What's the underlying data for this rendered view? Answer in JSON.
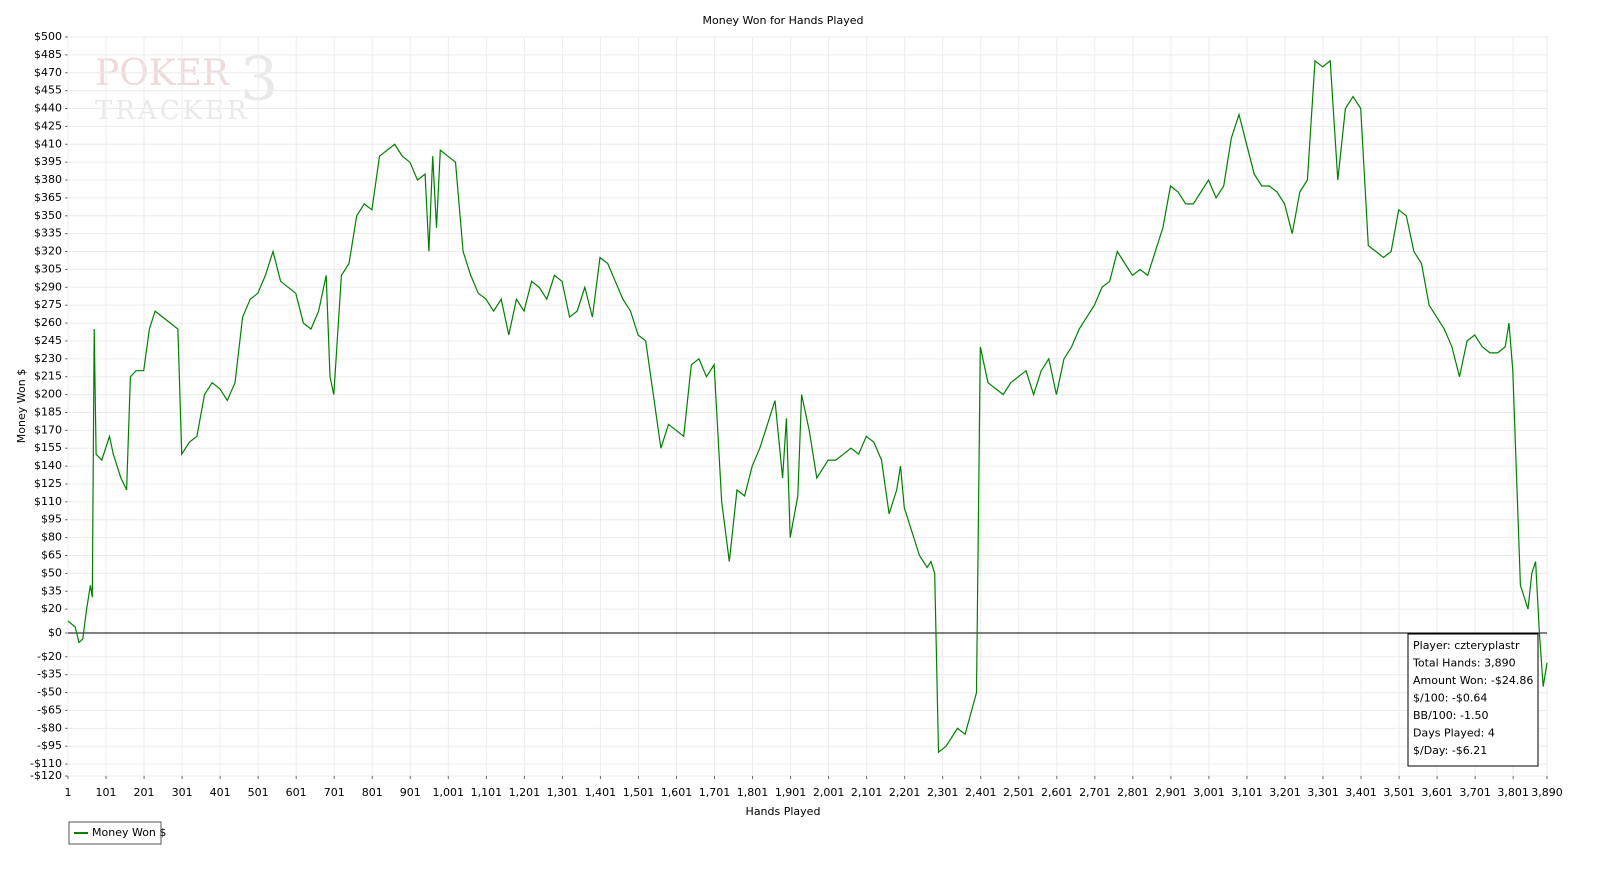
{
  "chart_data": {
    "type": "line",
    "title": "Money Won for Hands Played",
    "x_label": "Hands Played",
    "y_label": "Money Won $",
    "xlim": [
      1,
      3890
    ],
    "ylim": [
      -120,
      500
    ],
    "xticks": [
      1,
      101,
      201,
      301,
      401,
      501,
      601,
      701,
      801,
      901,
      {
        "value": 1001,
        "label": "1,001"
      },
      {
        "value": 1101,
        "label": "1,101"
      },
      {
        "value": 1201,
        "label": "1,201"
      },
      {
        "value": 1301,
        "label": "1,301"
      },
      {
        "value": 1401,
        "label": "1,401"
      },
      {
        "value": 1501,
        "label": "1,501"
      },
      {
        "value": 1601,
        "label": "1,601"
      },
      {
        "value": 1701,
        "label": "1,701"
      },
      {
        "value": 1801,
        "label": "1,801"
      },
      {
        "value": 1901,
        "label": "1,901"
      },
      {
        "value": 2001,
        "label": "2,001"
      },
      {
        "value": 2101,
        "label": "2,101"
      },
      {
        "value": 2201,
        "label": "2,201"
      },
      {
        "value": 2301,
        "label": "2,301"
      },
      {
        "value": 2401,
        "label": "2,401"
      },
      {
        "value": 2501,
        "label": "2,501"
      },
      {
        "value": 2601,
        "label": "2,601"
      },
      {
        "value": 2701,
        "label": "2,701"
      },
      {
        "value": 2801,
        "label": "2,801"
      },
      {
        "value": 2901,
        "label": "2,901"
      },
      {
        "value": 3001,
        "label": "3,001"
      },
      {
        "value": 3101,
        "label": "3,101"
      },
      {
        "value": 3201,
        "label": "3,201"
      },
      {
        "value": 3301,
        "label": "3,301"
      },
      {
        "value": 3401,
        "label": "3,401"
      },
      {
        "value": 3501,
        "label": "3,501"
      },
      {
        "value": 3601,
        "label": "3,601"
      },
      {
        "value": 3701,
        "label": "3,701"
      },
      {
        "value": 3801,
        "label": "3,801"
      },
      {
        "value": 3890,
        "label": "3,890"
      }
    ],
    "yticks": [
      {
        "value": 500,
        "label": "$500"
      },
      {
        "value": 485,
        "label": "$485"
      },
      {
        "value": 470,
        "label": "$470"
      },
      {
        "value": 455,
        "label": "$455"
      },
      {
        "value": 440,
        "label": "$440"
      },
      {
        "value": 425,
        "label": "$425"
      },
      {
        "value": 410,
        "label": "$410"
      },
      {
        "value": 395,
        "label": "$395"
      },
      {
        "value": 380,
        "label": "$380"
      },
      {
        "value": 365,
        "label": "$365"
      },
      {
        "value": 350,
        "label": "$350"
      },
      {
        "value": 335,
        "label": "$335"
      },
      {
        "value": 320,
        "label": "$320"
      },
      {
        "value": 305,
        "label": "$305"
      },
      {
        "value": 290,
        "label": "$290"
      },
      {
        "value": 275,
        "label": "$275"
      },
      {
        "value": 260,
        "label": "$260"
      },
      {
        "value": 245,
        "label": "$245"
      },
      {
        "value": 230,
        "label": "$230"
      },
      {
        "value": 215,
        "label": "$215"
      },
      {
        "value": 200,
        "label": "$200"
      },
      {
        "value": 185,
        "label": "$185"
      },
      {
        "value": 170,
        "label": "$170"
      },
      {
        "value": 155,
        "label": "$155"
      },
      {
        "value": 140,
        "label": "$140"
      },
      {
        "value": 125,
        "label": "$125"
      },
      {
        "value": 110,
        "label": "$110"
      },
      {
        "value": 95,
        "label": "$95"
      },
      {
        "value": 80,
        "label": "$80"
      },
      {
        "value": 65,
        "label": "$65"
      },
      {
        "value": 50,
        "label": "$50"
      },
      {
        "value": 35,
        "label": "$35"
      },
      {
        "value": 20,
        "label": "$20"
      },
      {
        "value": 0,
        "label": "$0"
      },
      {
        "value": -20,
        "label": "-$20"
      },
      {
        "value": -35,
        "label": "-$35"
      },
      {
        "value": -50,
        "label": "-$50"
      },
      {
        "value": -65,
        "label": "-$65"
      },
      {
        "value": -80,
        "label": "-$80"
      },
      {
        "value": -95,
        "label": "-$95"
      },
      {
        "value": -110,
        "label": "-$110"
      },
      {
        "value": -120,
        "label": "-$120"
      }
    ],
    "grid": true,
    "x": [
      1,
      20,
      30,
      40,
      50,
      60,
      65,
      70,
      75,
      90,
      110,
      120,
      140,
      155,
      165,
      180,
      200,
      215,
      230,
      250,
      270,
      290,
      300,
      320,
      340,
      360,
      380,
      400,
      420,
      440,
      460,
      480,
      500,
      520,
      540,
      560,
      580,
      600,
      620,
      640,
      660,
      680,
      690,
      700,
      720,
      740,
      760,
      780,
      800,
      820,
      860,
      880,
      900,
      920,
      940,
      950,
      960,
      970,
      980,
      1000,
      1020,
      1040,
      1060,
      1080,
      1100,
      1120,
      1140,
      1160,
      1180,
      1200,
      1220,
      1240,
      1260,
      1280,
      1300,
      1320,
      1340,
      1360,
      1380,
      1400,
      1420,
      1440,
      1460,
      1480,
      1500,
      1520,
      1540,
      1560,
      1580,
      1600,
      1620,
      1640,
      1660,
      1680,
      1700,
      1720,
      1740,
      1760,
      1780,
      1800,
      1820,
      1840,
      1860,
      1880,
      1890,
      1900,
      1920,
      1930,
      1950,
      1970,
      2000,
      2020,
      2040,
      2060,
      2080,
      2100,
      2120,
      2140,
      2160,
      2180,
      2190,
      2200,
      2220,
      2240,
      2260,
      2270,
      2280,
      2290,
      2310,
      2340,
      2360,
      2390,
      2400,
      2420,
      2440,
      2460,
      2480,
      2500,
      2520,
      2540,
      2560,
      2580,
      2600,
      2620,
      2640,
      2660,
      2680,
      2700,
      2720,
      2740,
      2760,
      2780,
      2800,
      2820,
      2840,
      2860,
      2880,
      2900,
      2920,
      2940,
      2960,
      2980,
      3000,
      3020,
      3040,
      3060,
      3080,
      3100,
      3120,
      3140,
      3160,
      3180,
      3200,
      3220,
      3240,
      3260,
      3280,
      3300,
      3320,
      3340,
      3360,
      3380,
      3400,
      3420,
      3440,
      3460,
      3480,
      3500,
      3520,
      3540,
      3560,
      3580,
      3600,
      3620,
      3640,
      3660,
      3680,
      3700,
      3720,
      3740,
      3760,
      3780,
      3790,
      3800,
      3820,
      3840,
      3850,
      3860,
      3870,
      3880,
      3890
    ],
    "series": [
      {
        "name": "Money Won $",
        "color": "#008000",
        "values": [
          10,
          5,
          -8,
          -5,
          20,
          40,
          30,
          255,
          150,
          145,
          165,
          150,
          130,
          120,
          215,
          220,
          220,
          255,
          270,
          265,
          260,
          255,
          150,
          160,
          165,
          200,
          210,
          205,
          195,
          210,
          265,
          280,
          285,
          300,
          320,
          295,
          290,
          285,
          260,
          255,
          270,
          300,
          215,
          200,
          300,
          310,
          350,
          360,
          355,
          400,
          410,
          400,
          395,
          380,
          385,
          320,
          400,
          340,
          405,
          400,
          395,
          320,
          300,
          285,
          280,
          270,
          280,
          250,
          280,
          270,
          295,
          290,
          280,
          300,
          295,
          265,
          270,
          290,
          265,
          315,
          310,
          295,
          280,
          270,
          250,
          245,
          200,
          155,
          175,
          170,
          165,
          225,
          230,
          215,
          225,
          110,
          60,
          120,
          115,
          140,
          155,
          175,
          195,
          130,
          180,
          80,
          115,
          200,
          170,
          130,
          145,
          145,
          150,
          155,
          150,
          165,
          160,
          145,
          100,
          120,
          140,
          105,
          85,
          65,
          55,
          60,
          50,
          -100,
          -95,
          -80,
          -85,
          -50,
          240,
          210,
          205,
          200,
          210,
          215,
          220,
          200,
          220,
          230,
          200,
          230,
          240,
          255,
          265,
          275,
          290,
          295,
          320,
          310,
          300,
          305,
          300,
          320,
          340,
          375,
          370,
          360,
          360,
          370,
          380,
          365,
          375,
          415,
          435,
          410,
          385,
          375,
          375,
          370,
          360,
          335,
          370,
          380,
          480,
          475,
          480,
          380,
          440,
          450,
          440,
          325,
          320,
          315,
          320,
          355,
          350,
          320,
          310,
          275,
          265,
          255,
          240,
          215,
          245,
          250,
          240,
          235,
          235,
          240,
          260,
          220,
          40,
          20,
          50,
          60,
          0,
          -45,
          -25
        ]
      }
    ],
    "info": [
      "Player: czteryplastr",
      "Total Hands: 3,890",
      "Amount Won: -$24.86",
      "$/100: -$0.64",
      "BB/100: -1.50",
      "Days Played: 4",
      "$/Day: -$6.21"
    ],
    "logo": {
      "line1": "POKER",
      "line2": "TRACKER",
      "mark": "3"
    }
  }
}
